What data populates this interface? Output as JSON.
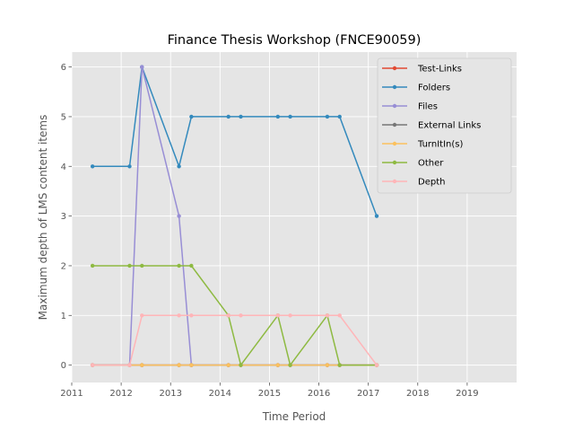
{
  "chart_data": {
    "type": "line",
    "title": "Finance Thesis Workshop (FNCE90059)",
    "xlabel": "Time Period",
    "ylabel": "Maximum depth of LMS content items",
    "xlim": [
      2011,
      2020
    ],
    "ylim": [
      -0.35,
      6.3
    ],
    "x_ticks": [
      "2011",
      "2012",
      "2013",
      "2014",
      "2015",
      "2016",
      "2017",
      "2018",
      "2019"
    ],
    "y_ticks": [
      "0",
      "1",
      "2",
      "3",
      "4",
      "5",
      "6"
    ],
    "grid": true,
    "legend_position": "top-right",
    "x": [
      2011.42,
      2012.17,
      2012.42,
      2013.17,
      2013.42,
      2014.17,
      2014.42,
      2015.17,
      2015.42,
      2016.17,
      2016.42,
      2017.17
    ],
    "series": [
      {
        "name": "Test-Links",
        "color": "#E24A33",
        "values": [
          0,
          0,
          0,
          0,
          0,
          0,
          0,
          0,
          0,
          0,
          0,
          0
        ]
      },
      {
        "name": "Folders",
        "color": "#348ABD",
        "values": [
          4,
          4,
          6,
          4,
          5,
          5,
          5,
          5,
          5,
          5,
          5,
          3
        ]
      },
      {
        "name": "Files",
        "color": "#988ED5",
        "values": [
          0,
          0,
          6,
          3,
          0,
          0,
          0,
          0,
          0,
          0,
          0,
          0
        ]
      },
      {
        "name": "External Links",
        "color": "#777777",
        "values": [
          0,
          0,
          0,
          0,
          0,
          0,
          0,
          0,
          0,
          0,
          0,
          0
        ]
      },
      {
        "name": "TurnItIn(s)",
        "color": "#FBC15E",
        "values": [
          0,
          0,
          0,
          0,
          0,
          0,
          0,
          0,
          0,
          0,
          0,
          0
        ]
      },
      {
        "name": "Other",
        "color": "#8EBA42",
        "values": [
          2,
          2,
          2,
          2,
          2,
          1,
          0,
          1,
          0,
          1,
          0,
          0
        ]
      },
      {
        "name": "Depth",
        "color": "#FFB5B8",
        "values": [
          0,
          0,
          1,
          1,
          1,
          1,
          1,
          1,
          1,
          1,
          1,
          0
        ]
      }
    ]
  }
}
